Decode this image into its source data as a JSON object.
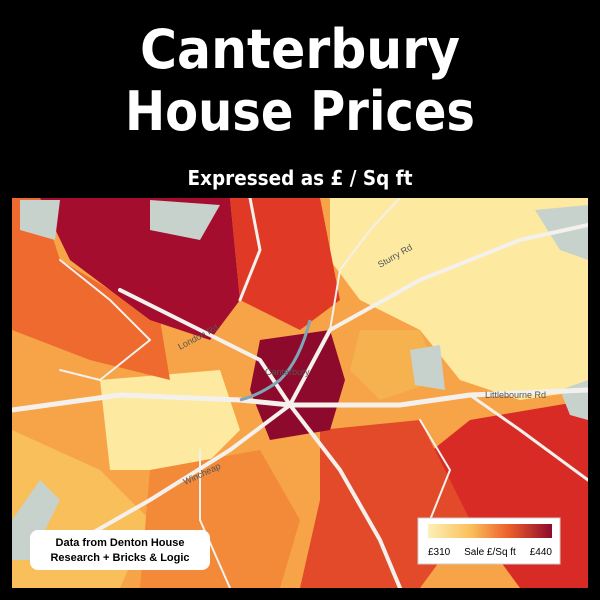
{
  "header": {
    "title_lines": [
      "Canterbury",
      "House Prices"
    ],
    "subtitle": "Expressed as £ / Sq ft"
  },
  "map": {
    "labels": [
      "Sturry Rd",
      "London Rd",
      "Canterbury",
      "Littlebourne Rd",
      "Wincheap"
    ]
  },
  "credit": {
    "lines": [
      "Data from Denton House",
      "Research + Bricks & Logic"
    ]
  },
  "legend": {
    "title": "Sale £/Sq ft",
    "min_label": "£310",
    "max_label": "£440"
  }
}
